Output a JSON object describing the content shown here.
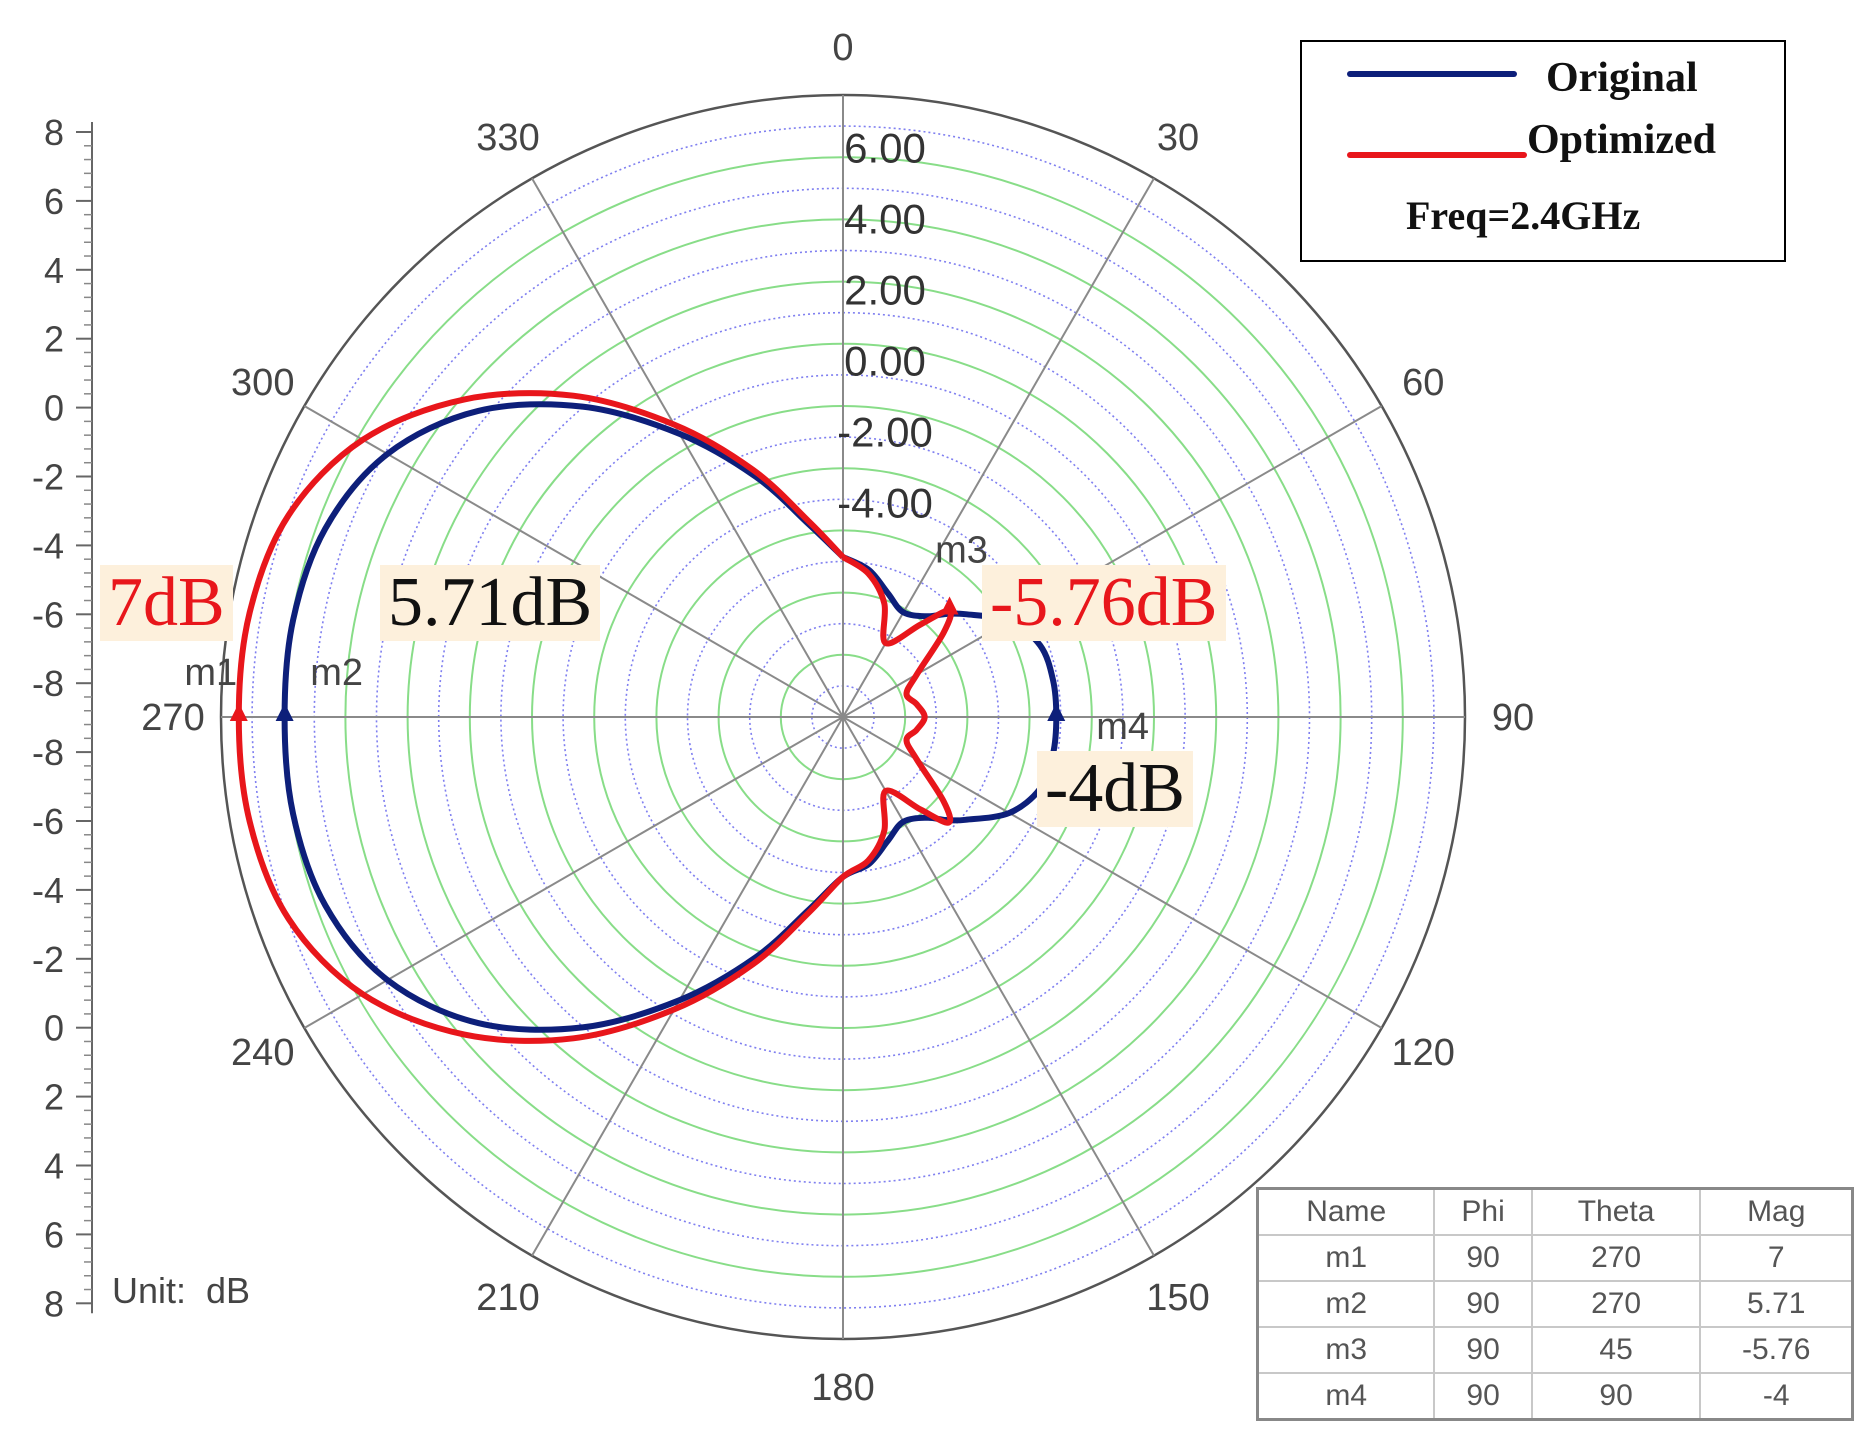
{
  "chart_data": {
    "type": "polar",
    "frequency_label": "Freq=2.4GHz",
    "unit_label": "Unit:  dB",
    "angle_ticks": [
      "0",
      "30",
      "60",
      "90",
      "120",
      "150",
      "180",
      "210",
      "240",
      "270",
      "300",
      "330"
    ],
    "radial_tick_labels": [
      "6.00",
      "4.00",
      "2.00",
      "0.00",
      "-2.00",
      "-4.00"
    ],
    "left_axis_ticks": [
      "8",
      "6",
      "4",
      "2",
      "0",
      "-2",
      "-4",
      "-6",
      "-8",
      "-8",
      "-6",
      "-4",
      "-2",
      "0",
      "2",
      "4",
      "6",
      "8"
    ],
    "radial_range_db": [
      -10,
      7.5
    ],
    "series": [
      {
        "name": "Original",
        "color": "#0d1f7a",
        "theta_deg": [
          0,
          10,
          20,
          30,
          40,
          45,
          50,
          60,
          70,
          80,
          90,
          100,
          110,
          120,
          130,
          135,
          140,
          150,
          160,
          170,
          180,
          190,
          200,
          210,
          220,
          230,
          240,
          250,
          260,
          270,
          280,
          290,
          300,
          310,
          320,
          330,
          340,
          350,
          360
        ],
        "mag_db": [
          -5.5,
          -5.8,
          -6.3,
          -6.6,
          -6.3,
          -5.9,
          -5.5,
          -4.6,
          -4.1,
          -4.0,
          -4.0,
          -4.0,
          -4.1,
          -4.6,
          -5.5,
          -5.9,
          -6.3,
          -6.6,
          -6.3,
          -5.8,
          -5.5,
          -4.5,
          -2.8,
          -0.8,
          1.4,
          3.4,
          4.8,
          5.5,
          5.71,
          5.71,
          5.71,
          5.5,
          4.8,
          3.4,
          1.4,
          -0.8,
          -2.8,
          -4.5,
          -5.5
        ]
      },
      {
        "name": "Optimized",
        "color": "#e8161b",
        "theta_deg": [
          0,
          10,
          20,
          30,
          40,
          45,
          50,
          60,
          70,
          80,
          90,
          100,
          110,
          120,
          130,
          135,
          140,
          150,
          160,
          170,
          180,
          190,
          200,
          210,
          220,
          230,
          240,
          250,
          260,
          270,
          280,
          290,
          300,
          310,
          320,
          330,
          340,
          350,
          360
        ],
        "mag_db": [
          -5.5,
          -5.9,
          -6.6,
          -7.6,
          -6.6,
          -5.76,
          -6.3,
          -7.6,
          -8.1,
          -7.9,
          -7.7,
          -7.9,
          -8.1,
          -7.6,
          -6.3,
          -5.8,
          -6.6,
          -7.6,
          -6.6,
          -5.9,
          -5.5,
          -4.4,
          -2.6,
          -0.5,
          1.8,
          3.9,
          5.6,
          6.6,
          6.95,
          7.0,
          6.95,
          6.6,
          5.6,
          3.9,
          1.8,
          -0.5,
          -2.6,
          -4.4,
          -5.5
        ]
      }
    ],
    "markers": [
      {
        "name": "m1",
        "phi": "90",
        "theta": "270",
        "mag": "7",
        "series": "Optimized"
      },
      {
        "name": "m2",
        "phi": "90",
        "theta": "270",
        "mag": "5.71",
        "series": "Original"
      },
      {
        "name": "m3",
        "phi": "90",
        "theta": "45",
        "mag": "-5.76",
        "series": "Optimized"
      },
      {
        "name": "m4",
        "phi": "90",
        "theta": "90",
        "mag": "-4",
        "series": "Original"
      }
    ],
    "callouts": [
      {
        "text": "7dB",
        "color": "#e8161b"
      },
      {
        "text": "5.71dB",
        "color": "#111111"
      },
      {
        "text": "-5.76dB",
        "color": "#e8161b"
      },
      {
        "text": "-4dB",
        "color": "#111111"
      }
    ],
    "table_headers": [
      "Name",
      "Phi",
      "Theta",
      "Mag"
    ],
    "grid": true,
    "legend_position": "top-right"
  }
}
